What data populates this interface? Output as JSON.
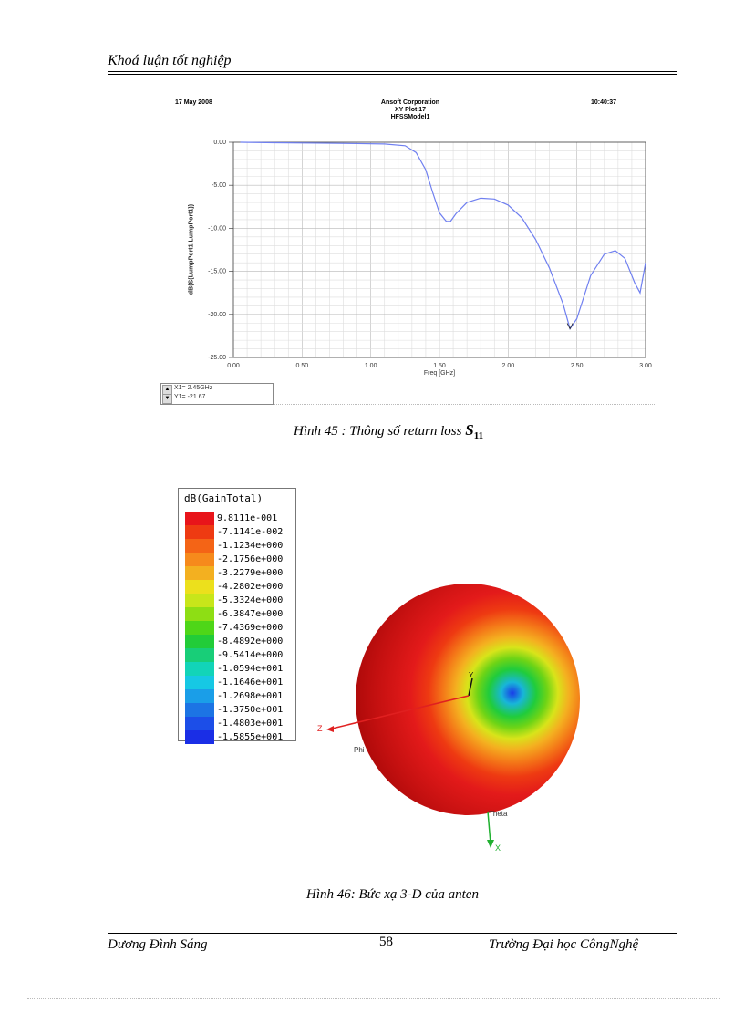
{
  "header": {
    "title": "Khoá luận tốt nghiệp"
  },
  "plot": {
    "date": "17 May 2008",
    "company": "Ansoft Corporation",
    "plot_name": "XY Plot 17",
    "model": "HFSSModel1",
    "time": "10:40:37",
    "ylabel": "dB(S(LumpPort1,LumpPort1))",
    "xlabel": "Freq [GHz]",
    "marker_x": "X1= 2.45GHz",
    "marker_y": "Y1= -21.67",
    "y_ticks": [
      "0.00",
      "-5.00",
      "-10.00",
      "-15.00",
      "-20.00",
      "-25.00"
    ],
    "x_ticks": [
      "0.00",
      "0.50",
      "1.00",
      "1.50",
      "2.00",
      "2.50",
      "3.00"
    ],
    "line_color": "#6f7ff0"
  },
  "chart_data": {
    "type": "line",
    "xlabel": "Freq [GHz]",
    "ylabel": "dB(S(LumpPort1,LumpPort1))",
    "xlim": [
      0,
      3
    ],
    "ylim": [
      -25,
      0
    ],
    "grid": true,
    "x": [
      0.05,
      0.3,
      0.6,
      0.9,
      1.1,
      1.25,
      1.33,
      1.4,
      1.45,
      1.5,
      1.55,
      1.58,
      1.62,
      1.7,
      1.8,
      1.9,
      2.0,
      2.1,
      2.2,
      2.3,
      2.4,
      2.45,
      2.5,
      2.6,
      2.7,
      2.78,
      2.85,
      2.92,
      2.96,
      3.0
    ],
    "values": [
      0.0,
      -0.05,
      -0.1,
      -0.15,
      -0.2,
      -0.4,
      -1.2,
      -3.2,
      -5.8,
      -8.2,
      -9.2,
      -9.2,
      -8.3,
      -7.0,
      -6.5,
      -6.6,
      -7.3,
      -8.8,
      -11.3,
      -14.6,
      -18.8,
      -21.67,
      -20.5,
      -15.5,
      -13.0,
      -12.6,
      -13.5,
      -16.3,
      -17.5,
      -14.0
    ]
  },
  "caption1": {
    "text": "Hình 45 : Thông số return loss ",
    "symbol": "S",
    "subscript": "11"
  },
  "legend": {
    "title": "dB(GainTotal)",
    "entries": [
      {
        "value": "9.8111e-001",
        "color": "#e8141a"
      },
      {
        "value": "-7.1141e-002",
        "color": "#ee3a12"
      },
      {
        "value": "-1.1234e+000",
        "color": "#f46416"
      },
      {
        "value": "-2.1756e+000",
        "color": "#f68a1c"
      },
      {
        "value": "-3.2279e+000",
        "color": "#f3b020"
      },
      {
        "value": "-4.2802e+000",
        "color": "#ece01c"
      },
      {
        "value": "-5.3324e+000",
        "color": "#c8e61a"
      },
      {
        "value": "-6.3847e+000",
        "color": "#8ede14"
      },
      {
        "value": "-7.4369e+000",
        "color": "#4ed618"
      },
      {
        "value": "-8.4892e+000",
        "color": "#22cc38"
      },
      {
        "value": "-9.5414e+000",
        "color": "#18ce78"
      },
      {
        "value": "-1.0594e+001",
        "color": "#12d4b8"
      },
      {
        "value": "-1.1646e+001",
        "color": "#16c8e4"
      },
      {
        "value": "-1.2698e+001",
        "color": "#1a9ee8"
      },
      {
        "value": "-1.3750e+001",
        "color": "#1c74e4"
      },
      {
        "value": "-1.4803e+001",
        "color": "#1c4ee8"
      },
      {
        "value": "-1.5855e+001",
        "color": "#1a2ee6"
      }
    ]
  },
  "pattern": {
    "axis_y": "Y",
    "axis_z": "Z",
    "axis_x": "X",
    "phi": "Phi",
    "theta": "Theta"
  },
  "caption2": {
    "text": "Hình 46: Bức xạ 3-D của anten"
  },
  "footer": {
    "author": "Dương Đình Sáng",
    "page": "58",
    "school": "Trường Đại học CôngNghệ"
  }
}
